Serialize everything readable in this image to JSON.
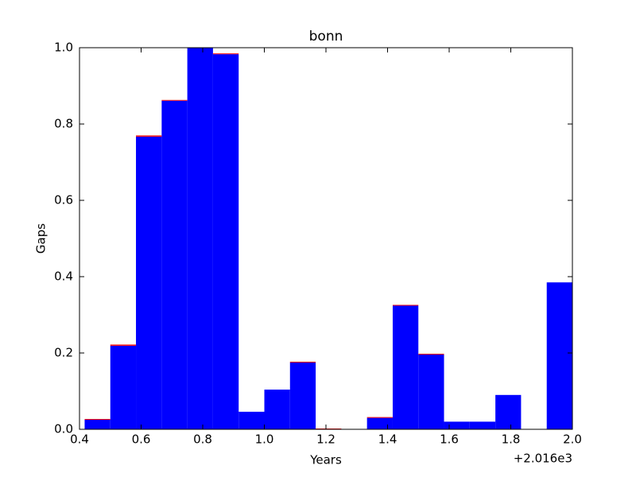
{
  "chart_data": {
    "type": "stacked_histogram",
    "title": "bonn",
    "xlabel": "Years",
    "ylabel": "Gaps",
    "x_offset_label": "+2.016e3",
    "bins": [
      0.4167,
      0.5,
      0.5833,
      0.6667,
      0.75,
      0.8333,
      0.9167,
      1.0,
      1.0833,
      1.1667,
      1.25,
      1.3333,
      1.4167,
      1.5,
      1.5833,
      1.6667,
      1.75,
      1.8333,
      1.9167,
      2.0
    ],
    "series": [
      {
        "color": "#0000ff",
        "values": [
          0.025,
          0.219,
          0.767,
          0.861,
          1.0,
          0.983,
          0.046,
          0.104,
          0.175,
          0.0,
          0.0,
          0.03,
          0.324,
          0.196,
          0.02,
          0.02,
          0.09,
          0.0,
          0.385
        ]
      },
      {
        "color": "#ff0000",
        "values": [
          0.002,
          0.003,
          0.003,
          0.002,
          0.0,
          0.002,
          0.0,
          0.0,
          0.002,
          0.002,
          0.0,
          0.002,
          0.002,
          0.002,
          0.0,
          0.0,
          0.0,
          0.0,
          0.0
        ]
      }
    ],
    "xlim": [
      0.4,
      2.0
    ],
    "xticks": [
      0.4,
      0.6,
      0.8,
      {
        "value": 1.0,
        "label": "1.0"
      },
      1.2,
      1.4,
      1.6,
      1.8,
      {
        "value": 2.0,
        "label": "2.0"
      }
    ],
    "ylim": [
      0.0,
      1.0
    ],
    "yticks": [
      {
        "value": 0.0,
        "label": "0.0"
      },
      0.2,
      0.4,
      0.6,
      0.8,
      {
        "value": 1.0,
        "label": "1.0"
      }
    ],
    "grid": false
  }
}
